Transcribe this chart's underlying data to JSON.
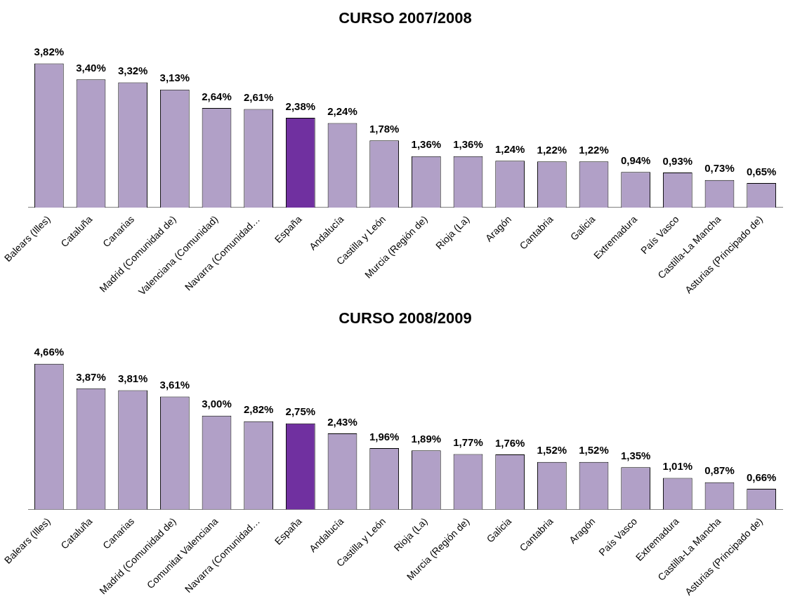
{
  "chart_data": [
    {
      "type": "bar",
      "title": "CURSO 2007/2008",
      "categories": [
        "Balears (Illes)",
        "Cataluña",
        "Canarias",
        "Madrid (Comunidad de)",
        "Valenciana (Comunidad)",
        "Navarra (Comunidad…",
        "España",
        "Andalucía",
        "Castilla y León",
        "Murcia (Región de)",
        "Rioja (La)",
        "Aragón",
        "Cantabria",
        "Galicia",
        "Extremadura",
        "País Vasco",
        "Castilla-La Mancha",
        "Asturias (Principado de)"
      ],
      "values": [
        3.82,
        3.4,
        3.32,
        3.13,
        2.64,
        2.61,
        2.38,
        2.24,
        1.78,
        1.36,
        1.36,
        1.24,
        1.22,
        1.22,
        0.94,
        0.93,
        0.73,
        0.65
      ],
      "value_labels": [
        "3,82%",
        "3,40%",
        "3,32%",
        "3,13%",
        "2,64%",
        "2,61%",
        "2,38%",
        "2,24%",
        "1,78%",
        "1,36%",
        "1,36%",
        "1,24%",
        "1,22%",
        "1,22%",
        "0,94%",
        "0,93%",
        "0,73%",
        "0,65%"
      ],
      "colors": [
        "#b1a0c7",
        "#b1a0c7",
        "#b1a0c7",
        "#b1a0c7",
        "#b1a0c7",
        "#b1a0c7",
        "#7030a0",
        "#b1a0c7",
        "#b1a0c7",
        "#b1a0c7",
        "#b1a0c7",
        "#b1a0c7",
        "#b1a0c7",
        "#b1a0c7",
        "#b1a0c7",
        "#b1a0c7",
        "#b1a0c7",
        "#b1a0c7"
      ],
      "grid": false,
      "legend": false,
      "tick_labels": "x"
    },
    {
      "type": "bar",
      "title": "CURSO 2008/2009",
      "categories": [
        "Balears (Illes)",
        "Cataluña",
        "Canarias",
        "Madrid (Comunidad de)",
        "Comunitat Valenciana",
        "Navarra (Comunidad…",
        "España",
        "Andalucía",
        "Castilla y León",
        "Rioja (La)",
        "Murcia (Región de)",
        "Galicia",
        "Cantabria",
        "Aragón",
        "País Vasco",
        "Extremadura",
        "Castilla-La Mancha",
        "Asturias (Principado de)"
      ],
      "values": [
        4.66,
        3.87,
        3.81,
        3.61,
        3.0,
        2.82,
        2.75,
        2.43,
        1.96,
        1.89,
        1.77,
        1.76,
        1.52,
        1.52,
        1.35,
        1.01,
        0.87,
        0.66
      ],
      "value_labels": [
        "4,66%",
        "3,87%",
        "3,81%",
        "3,61%",
        "3,00%",
        "2,82%",
        "2,75%",
        "2,43%",
        "1,96%",
        "1,89%",
        "1,77%",
        "1,76%",
        "1,52%",
        "1,52%",
        "1,35%",
        "1,01%",
        "0,87%",
        "0,66%"
      ],
      "colors": [
        "#b1a0c7",
        "#b1a0c7",
        "#b1a0c7",
        "#b1a0c7",
        "#b1a0c7",
        "#b1a0c7",
        "#7030a0",
        "#b1a0c7",
        "#b1a0c7",
        "#b1a0c7",
        "#b1a0c7",
        "#b1a0c7",
        "#b1a0c7",
        "#b1a0c7",
        "#b1a0c7",
        "#b1a0c7",
        "#b1a0c7",
        "#b1a0c7"
      ],
      "grid": false,
      "legend": false,
      "tick_labels": "x"
    }
  ]
}
